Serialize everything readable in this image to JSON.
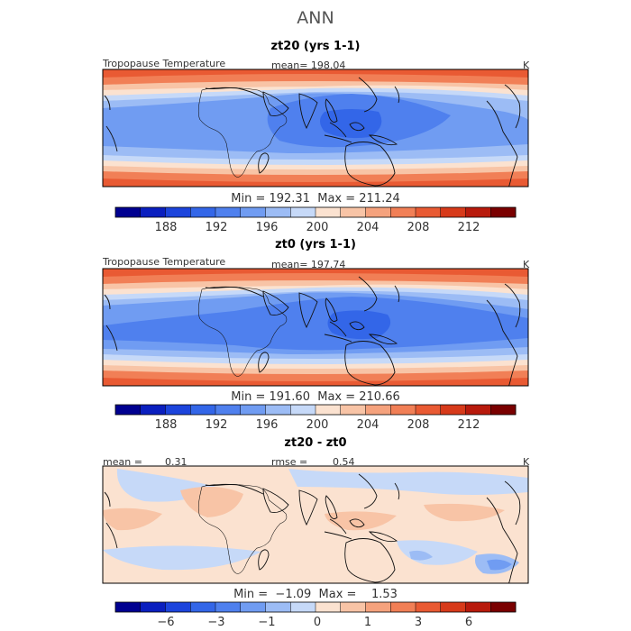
{
  "title": "ANN",
  "units": "K",
  "panels": [
    {
      "id": "zt20",
      "title": "zt20 (yrs 1-1)",
      "field_label": "Tropopause Temperature",
      "mean": "mean= 198.04",
      "units": "K",
      "minmax": "Min = 192.31  Max = 211.24",
      "colorbar_ticks": [
        "188",
        "192",
        "196",
        "200",
        "204",
        "208",
        "212"
      ]
    },
    {
      "id": "zt0",
      "title": "zt0 (yrs 1-1)",
      "field_label": "Tropopause Temperature",
      "mean": "mean= 197.74",
      "units": "K",
      "minmax": "Min = 191.60  Max = 210.66",
      "colorbar_ticks": [
        "188",
        "192",
        "196",
        "200",
        "204",
        "208",
        "212"
      ]
    },
    {
      "id": "diff",
      "title": "zt20 - zt0",
      "mean_label": "mean =",
      "mean_value": "0.31",
      "rmse_label": "rmse =",
      "rmse_value": "0.54",
      "units": "K",
      "minmax": "Min =  −1.09  Max =    1.53",
      "colorbar_ticks": [
        "−6",
        "−3",
        "−1",
        "0",
        "1",
        "3",
        "6"
      ]
    }
  ],
  "colors": {
    "scale": [
      "#000090",
      "#0a1fbf",
      "#1c44dc",
      "#3366e8",
      "#4f80ee",
      "#709cf2",
      "#9cbcf5",
      "#c6d9f8",
      "#fbe2d0",
      "#f8c4a6",
      "#f5a27d",
      "#f17f56",
      "#e95a33",
      "#d73a1a",
      "#b81a0c",
      "#7a0000"
    ],
    "ocean_panel_bg": "#c8dcf8",
    "diff_bg": "#fbdccb"
  }
}
